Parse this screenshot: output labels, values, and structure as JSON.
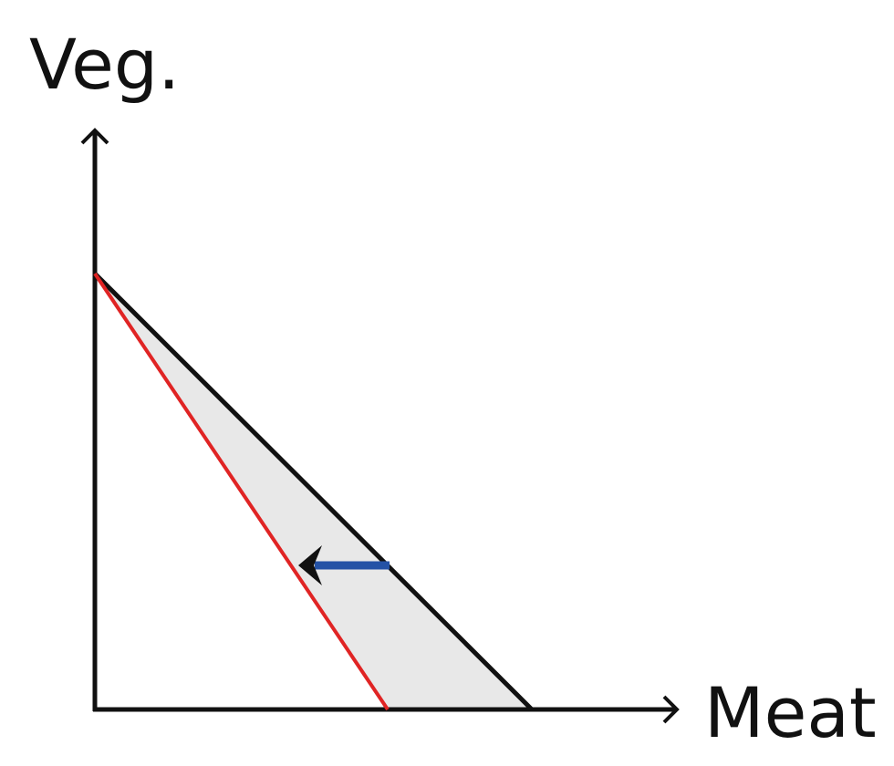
{
  "diagram": {
    "y_axis_label": "Veg.",
    "x_axis_label": "Meat",
    "colors": {
      "axes": "#111111",
      "original_budget_line": "#111111",
      "new_budget_line": "#e02424",
      "lost_region_fill": "#e8e8e8",
      "shift_arrow": "#2452a6",
      "arrow_head": "#111111"
    },
    "shift_direction": "left"
  }
}
